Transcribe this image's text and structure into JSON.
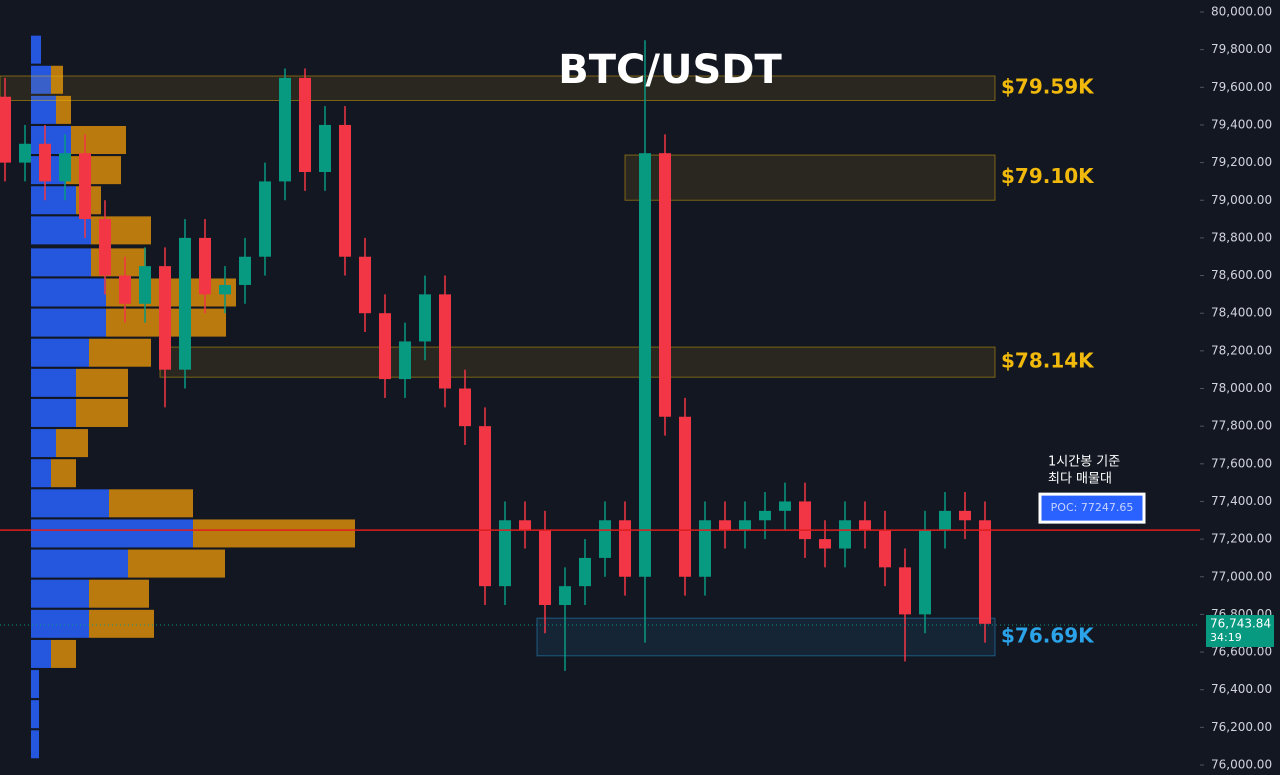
{
  "chart_data": {
    "type": "candlestick",
    "title": "BTC/USDT",
    "up_color": "#089981",
    "down_color": "#f23645",
    "ylim": [
      76000,
      80000
    ],
    "yticks": [
      {
        "value": 76000,
        "label": "76,000.00"
      },
      {
        "value": 76200,
        "label": "76,200.00"
      },
      {
        "value": 76400,
        "label": "76,400.00"
      },
      {
        "value": 76600,
        "label": "76,600.00"
      },
      {
        "value": 76800,
        "label": "76,800.00"
      },
      {
        "value": 77000,
        "label": "77,000.00"
      },
      {
        "value": 77200,
        "label": "77,200.00"
      },
      {
        "value": 77400,
        "label": "77,400.00"
      },
      {
        "value": 77600,
        "label": "77,600.00"
      },
      {
        "value": 77800,
        "label": "77,800.00"
      },
      {
        "value": 78000,
        "label": "78,000.00"
      },
      {
        "value": 78200,
        "label": "78,200.00"
      },
      {
        "value": 78400,
        "label": "78,400.00"
      },
      {
        "value": 78600,
        "label": "78,600.00"
      },
      {
        "value": 78800,
        "label": "78,800.00"
      },
      {
        "value": 79000,
        "label": "79,000.00"
      },
      {
        "value": 79200,
        "label": "79,200.00"
      },
      {
        "value": 79400,
        "label": "79,400.00"
      },
      {
        "value": 79600,
        "label": "79,600.00"
      },
      {
        "value": 79800,
        "label": "79,800.00"
      },
      {
        "value": 80000,
        "label": "80,000.00"
      }
    ],
    "open": [
      79550,
      79200,
      79300,
      79100,
      79250,
      78900,
      78600,
      78450,
      78650,
      78100,
      78800,
      78500,
      78550,
      78700,
      79100,
      79650,
      79150,
      79400,
      78700,
      78400,
      78050,
      78250,
      78500,
      78000,
      77800,
      76950,
      77300,
      77250,
      76850,
      76950,
      77100,
      77300,
      77000,
      79250,
      77850,
      77000,
      77300,
      77250,
      77300,
      77350,
      77400,
      77200,
      77150,
      77300,
      77250,
      77050,
      76800,
      77250,
      77350,
      77300
    ],
    "high": [
      79650,
      79400,
      79400,
      79350,
      79350,
      79000,
      78700,
      78750,
      78750,
      78900,
      78900,
      78650,
      78800,
      79200,
      79700,
      79700,
      79500,
      79500,
      78800,
      78500,
      78350,
      78600,
      78600,
      78100,
      77900,
      77400,
      77400,
      77350,
      77050,
      77200,
      77400,
      77400,
      79850,
      79350,
      77950,
      77400,
      77400,
      77400,
      77450,
      77500,
      77500,
      77300,
      77400,
      77400,
      77350,
      77150,
      77350,
      77450,
      77450,
      77400
    ],
    "low": [
      79100,
      79100,
      79000,
      79000,
      78800,
      78500,
      78350,
      78350,
      77900,
      78000,
      78400,
      78400,
      78450,
      78600,
      79000,
      79050,
      79050,
      78600,
      78300,
      77950,
      77950,
      78150,
      77900,
      77700,
      76850,
      76850,
      77150,
      76700,
      76500,
      76850,
      77000,
      76900,
      76650,
      77750,
      76900,
      76900,
      77150,
      77150,
      77200,
      77250,
      77100,
      77050,
      77050,
      77150,
      76950,
      76550,
      76700,
      77150,
      77200,
      76650
    ],
    "close": [
      79200,
      79300,
      79100,
      79250,
      78900,
      78600,
      78450,
      78650,
      78100,
      78800,
      78500,
      78550,
      78700,
      79100,
      79650,
      79150,
      79400,
      78700,
      78400,
      78050,
      78250,
      78500,
      78000,
      77800,
      76950,
      77300,
      77250,
      76850,
      76950,
      77100,
      77300,
      77000,
      79250,
      77850,
      77000,
      77300,
      77250,
      77300,
      77350,
      77400,
      77200,
      77150,
      77300,
      77250,
      77050,
      76800,
      77250,
      77350,
      77300,
      76750
    ],
    "volume_profile": {
      "buy_color": "#2962ff",
      "sell_color": "#d98c0a",
      "levels": [
        79800,
        79640,
        79480,
        79320,
        79160,
        79000,
        78840,
        78670,
        78510,
        78350,
        78190,
        78030,
        77870,
        77710,
        77550,
        77390,
        77230,
        77070,
        76910,
        76750,
        76590,
        76430,
        76270,
        76110
      ],
      "buy": [
        10,
        20,
        25,
        40,
        35,
        45,
        60,
        60,
        75,
        75,
        58,
        45,
        45,
        25,
        20,
        78,
        162,
        97,
        58,
        58,
        20,
        8,
        8,
        8
      ],
      "sell": [
        0,
        12,
        15,
        55,
        55,
        25,
        60,
        55,
        130,
        120,
        62,
        52,
        52,
        32,
        25,
        84,
        162,
        97,
        60,
        65,
        25,
        0,
        0,
        0
      ]
    },
    "zones": [
      {
        "low": 79530,
        "high": 79660,
        "label": "$79.59K",
        "color": "#f0b90b"
      },
      {
        "low": 79000,
        "high": 79240,
        "label": "$79.10K",
        "color": "#f0b90b"
      },
      {
        "low": 78060,
        "high": 78220,
        "label": "$78.14K",
        "color": "#f0b90b"
      },
      {
        "low": 76580,
        "high": 76780,
        "label": "$76.69K",
        "color": "#2aa3e8"
      }
    ],
    "poc": {
      "value": 77247.65,
      "label": "POC: 77247.65",
      "note": [
        "1시간봉 기준",
        "최다 매물대"
      ],
      "color": "#e01e1e"
    },
    "last_price": {
      "value": 76743.84,
      "label": "76,743.84",
      "countdown": "34:19",
      "color": "#089981"
    }
  }
}
